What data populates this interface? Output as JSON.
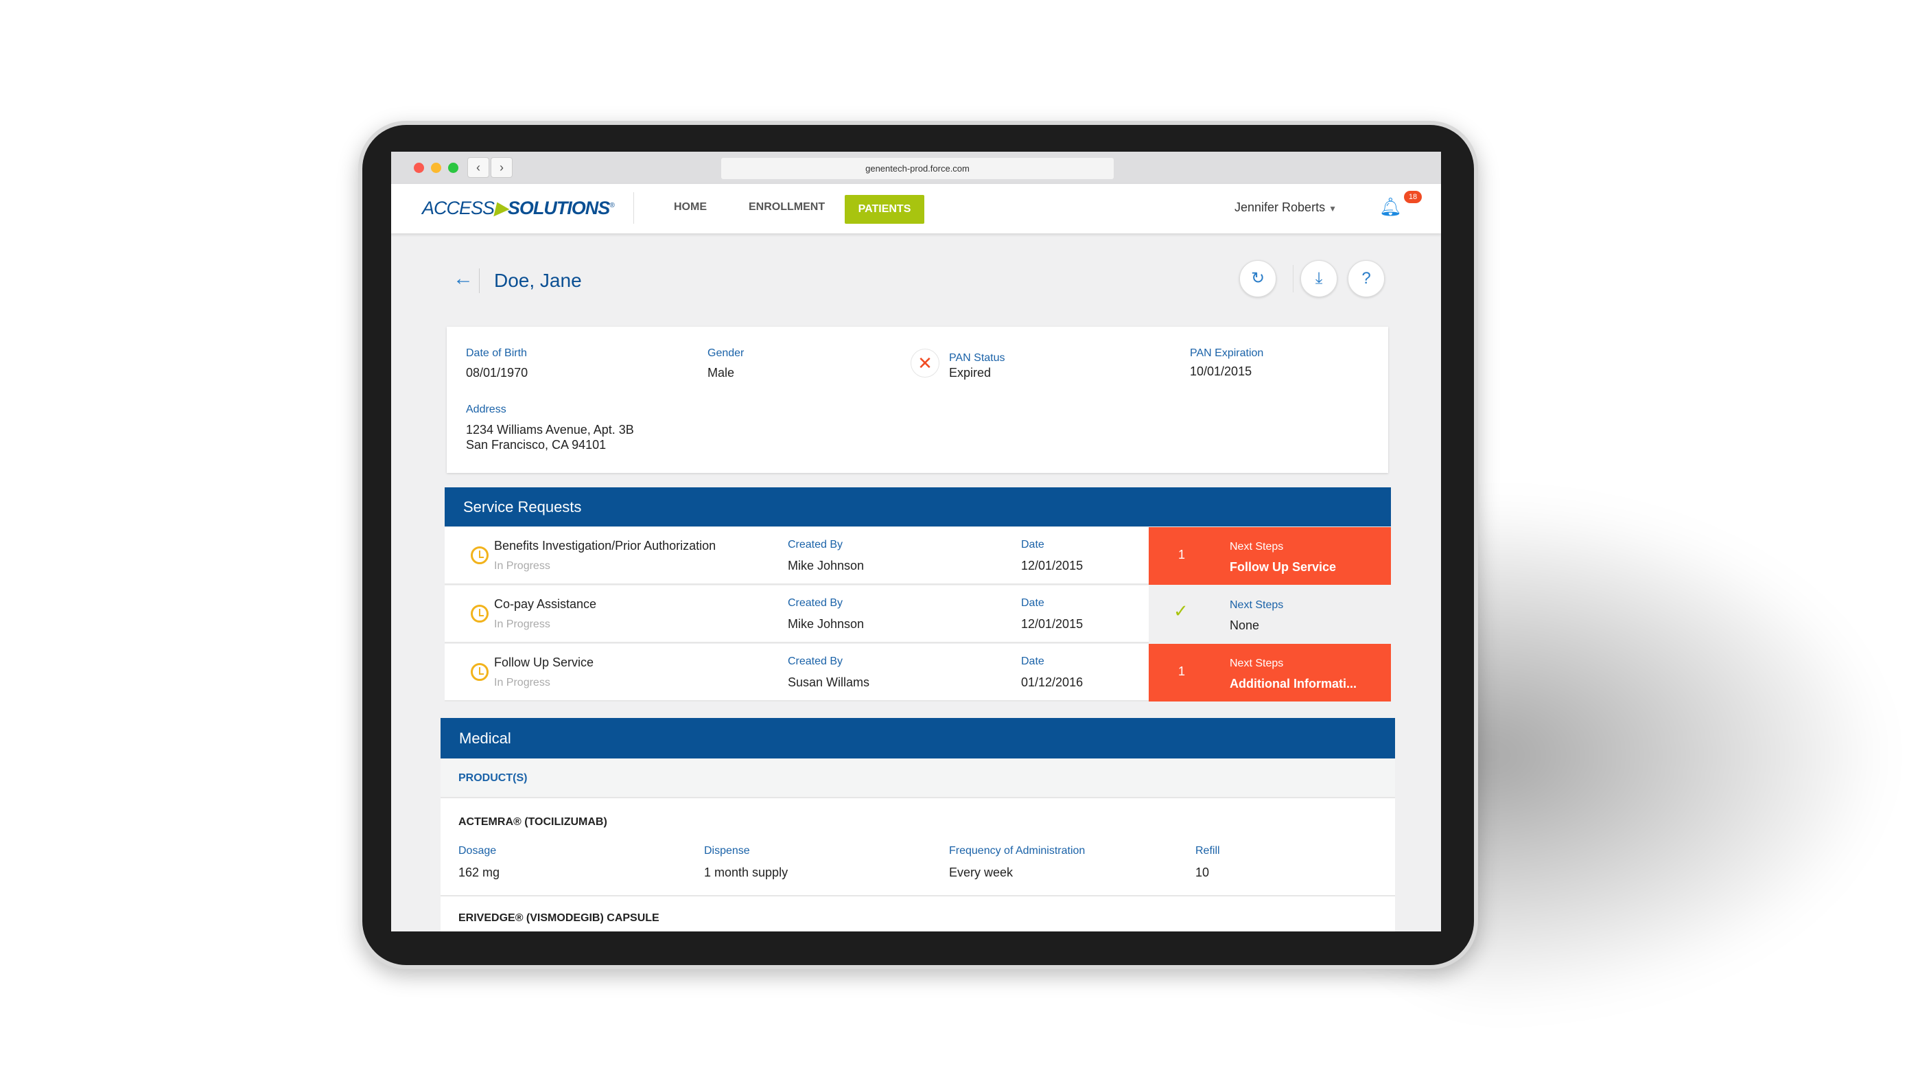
{
  "browser": {
    "url": "genentech-prod.force.com"
  },
  "nav": {
    "logo_text_1": "ACCESS",
    "logo_text_2": "SOLUTIONS",
    "items": [
      {
        "label": "HOME"
      },
      {
        "label": "ENROLLMENT"
      },
      {
        "label": "PATIENTS",
        "active": true
      }
    ],
    "user": "Jennifer Roberts",
    "notifications": "18"
  },
  "patient": {
    "name": "Doe, Jane",
    "dob_label": "Date of Birth",
    "dob": "08/01/1970",
    "gender_label": "Gender",
    "gender": "Male",
    "pan_status_label": "PAN Status",
    "pan_status": "Expired",
    "pan_exp_label": "PAN Expiration",
    "pan_exp": "10/01/2015",
    "address_label": "Address",
    "address_line1": "1234 Williams Avenue, Apt. 3B",
    "address_line2": "San Francisco, CA 94101"
  },
  "service_requests": {
    "title": "Service Requests",
    "created_by_label": "Created By",
    "date_label": "Date",
    "next_steps_label": "Next Steps",
    "rows": [
      {
        "title": "Benefits Investigation/Prior Authorization",
        "status": "In Progress",
        "created_by": "Mike Johnson",
        "date": "12/01/2015",
        "count": "1",
        "next_steps": "Follow Up Service"
      },
      {
        "title": "Co-pay Assistance",
        "status": "In Progress",
        "created_by": "Mike Johnson",
        "date": "12/01/2015",
        "next_steps": "None"
      },
      {
        "title": "Follow Up Service",
        "status": "In Progress",
        "created_by": "Susan Willams",
        "date": "01/12/2016",
        "count": "1",
        "next_steps": "Additional Informati..."
      }
    ]
  },
  "medical": {
    "title": "Medical",
    "products_label": "PRODUCT(S)",
    "products": [
      {
        "name": "ACTEMRA® (TOCILIZUMAB)",
        "dosage_label": "Dosage",
        "dosage": "162 mg",
        "dispense_label": "Dispense",
        "dispense": "1 month supply",
        "freq_label": "Frequency of Administration",
        "freq": "Every week",
        "refill_label": "Refill",
        "refill": "10"
      },
      {
        "name": "ERIVEDGE® (VISMODEGIB) CAPSULE"
      }
    ]
  },
  "colors": {
    "brand_blue": "#0a5294",
    "accent_green": "#a8c40f",
    "alert_orange": "#fa5230",
    "pending_yellow": "#f2b31c"
  }
}
